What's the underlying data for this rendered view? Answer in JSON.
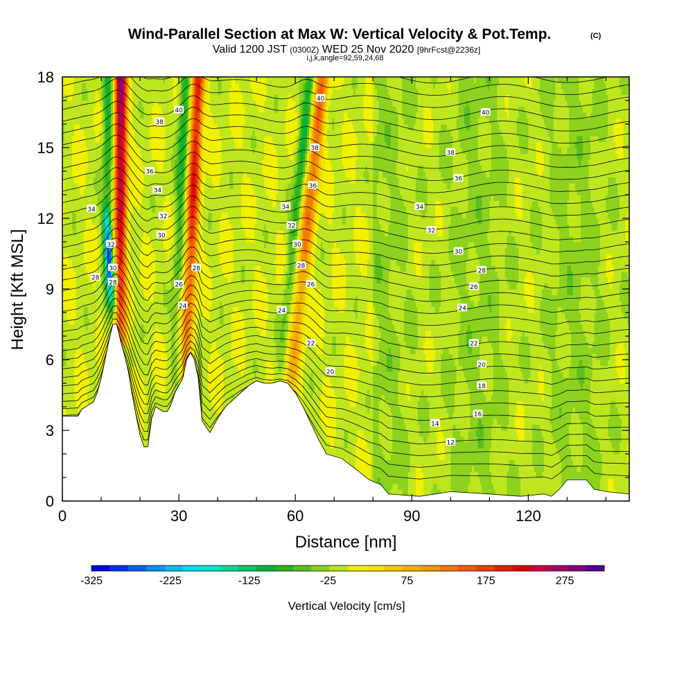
{
  "header": {
    "title": "Wind-Parallel Section at Max W: Vertical Velocity & Pot.Temp.",
    "copyright": "(C)",
    "valid_prefix": "Valid 1200 JST",
    "valid_zulu": "(0300Z)",
    "valid_date": "WED 25 Nov 2020",
    "forecast": "[9hrFcst@2236z]",
    "indices": "i,j,k,angle=92,59,24,68"
  },
  "chart_data": {
    "type": "heatmap",
    "xlabel": "Distance [nm]",
    "ylabel": "Height [Kft MSL]",
    "xlim": [
      0,
      146
    ],
    "ylim": [
      0,
      18
    ],
    "x_ticks": [
      "0",
      "30",
      "60",
      "90",
      "120"
    ],
    "x_tick_values": [
      0,
      30,
      60,
      90,
      120
    ],
    "y_ticks": [
      "0",
      "3",
      "6",
      "9",
      "12",
      "15",
      "18"
    ],
    "y_tick_values": [
      0,
      3,
      6,
      9,
      12,
      15,
      18
    ],
    "terrain_kft": [
      [
        0,
        3.6
      ],
      [
        4,
        3.6
      ],
      [
        5,
        3.9
      ],
      [
        8,
        4.2
      ],
      [
        9,
        4.6
      ],
      [
        10,
        5.2
      ],
      [
        11,
        6.0
      ],
      [
        12,
        6.8
      ],
      [
        13,
        7.5
      ],
      [
        14,
        7.5
      ],
      [
        15,
        6.8
      ],
      [
        16,
        6.2
      ],
      [
        17,
        5.5
      ],
      [
        18,
        4.5
      ],
      [
        19,
        3.6
      ],
      [
        20,
        2.8
      ],
      [
        21,
        2.3
      ],
      [
        22,
        2.3
      ],
      [
        23,
        3.5
      ],
      [
        24,
        4.0
      ],
      [
        26,
        3.8
      ],
      [
        27,
        3.8
      ],
      [
        28,
        4.1
      ],
      [
        29,
        4.6
      ],
      [
        31,
        5.2
      ],
      [
        32,
        6.0
      ],
      [
        33,
        6.3
      ],
      [
        34,
        6.0
      ],
      [
        35,
        5.2
      ],
      [
        36,
        3.4
      ],
      [
        38,
        2.9
      ],
      [
        40,
        3.5
      ],
      [
        42,
        4.0
      ],
      [
        44,
        4.3
      ],
      [
        46,
        4.6
      ],
      [
        48,
        4.9
      ],
      [
        50,
        5.1
      ],
      [
        52,
        5.0
      ],
      [
        54,
        5.0
      ],
      [
        56,
        5.1
      ],
      [
        58,
        5.0
      ],
      [
        60,
        4.6
      ],
      [
        62,
        4.0
      ],
      [
        64,
        3.3
      ],
      [
        66,
        2.6
      ],
      [
        68,
        2.0
      ],
      [
        72,
        1.8
      ],
      [
        76,
        1.3
      ],
      [
        79,
        0.9
      ],
      [
        82,
        0.7
      ],
      [
        84,
        0.3
      ],
      [
        92,
        0.2
      ],
      [
        96,
        0.3
      ],
      [
        100,
        0.4
      ],
      [
        110,
        0.3
      ],
      [
        118,
        0.2
      ],
      [
        124,
        0.3
      ],
      [
        126,
        0.2
      ],
      [
        128,
        0.5
      ],
      [
        130,
        0.9
      ],
      [
        135,
        0.9
      ],
      [
        137,
        0.5
      ],
      [
        140,
        0.4
      ],
      [
        146,
        0.3
      ]
    ],
    "updraft_cores": [
      {
        "x_base": 15,
        "x_top": 15,
        "width_nm": 1.6,
        "w_max": 300,
        "z_base": 7.5
      },
      {
        "x_base": 32,
        "x_top": 35,
        "width_nm": 1.6,
        "w_max": 225,
        "z_base": 6.0
      },
      {
        "x_base": 59,
        "x_top": 67,
        "width_nm": 1.8,
        "w_max": 150,
        "z_base": 5.0
      }
    ],
    "downdraft_cores": [
      {
        "x_base": 13,
        "x_top": 11,
        "width_nm": 1.0,
        "w_min": -250,
        "z_base": 7.5
      }
    ],
    "theta_contour_labels": [
      {
        "x": 7.5,
        "y": 12.4,
        "label": "34"
      },
      {
        "x": 8.5,
        "y": 9.5,
        "label": "28"
      },
      {
        "x": 12.5,
        "y": 10.9,
        "label": "32"
      },
      {
        "x": 13,
        "y": 9.9,
        "label": "30"
      },
      {
        "x": 13,
        "y": 9.3,
        "label": "28"
      },
      {
        "x": 25,
        "y": 16.1,
        "label": "38"
      },
      {
        "x": 22.5,
        "y": 14.0,
        "label": "36"
      },
      {
        "x": 24.5,
        "y": 13.2,
        "label": "34"
      },
      {
        "x": 26,
        "y": 12.1,
        "label": "32"
      },
      {
        "x": 25.5,
        "y": 11.3,
        "label": "30"
      },
      {
        "x": 30,
        "y": 16.6,
        "label": "40"
      },
      {
        "x": 30,
        "y": 9.2,
        "label": "26"
      },
      {
        "x": 31,
        "y": 8.3,
        "label": "24"
      },
      {
        "x": 34.5,
        "y": 9.9,
        "label": "28"
      },
      {
        "x": 57.5,
        "y": 12.5,
        "label": "34"
      },
      {
        "x": 59,
        "y": 11.7,
        "label": "32"
      },
      {
        "x": 60.5,
        "y": 10.9,
        "label": "30"
      },
      {
        "x": 61.5,
        "y": 10.0,
        "label": "28"
      },
      {
        "x": 64,
        "y": 9.2,
        "label": "26"
      },
      {
        "x": 56.5,
        "y": 8.1,
        "label": "24"
      },
      {
        "x": 64,
        "y": 6.7,
        "label": "22"
      },
      {
        "x": 69,
        "y": 5.5,
        "label": "20"
      },
      {
        "x": 66.5,
        "y": 17.1,
        "label": "40"
      },
      {
        "x": 65,
        "y": 15.0,
        "label": "38"
      },
      {
        "x": 64.5,
        "y": 13.4,
        "label": "36"
      },
      {
        "x": 109,
        "y": 16.5,
        "label": "40"
      },
      {
        "x": 100,
        "y": 14.8,
        "label": "38"
      },
      {
        "x": 102,
        "y": 13.7,
        "label": "36"
      },
      {
        "x": 92,
        "y": 12.5,
        "label": "34"
      },
      {
        "x": 95,
        "y": 11.5,
        "label": "32"
      },
      {
        "x": 102,
        "y": 10.6,
        "label": "30"
      },
      {
        "x": 108,
        "y": 9.8,
        "label": "28"
      },
      {
        "x": 106,
        "y": 9.1,
        "label": "26"
      },
      {
        "x": 103,
        "y": 8.2,
        "label": "24"
      },
      {
        "x": 106,
        "y": 6.7,
        "label": "22"
      },
      {
        "x": 108,
        "y": 5.8,
        "label": "20"
      },
      {
        "x": 108,
        "y": 4.9,
        "label": "18"
      },
      {
        "x": 107,
        "y": 3.7,
        "label": "16"
      },
      {
        "x": 96,
        "y": 3.3,
        "label": "14"
      },
      {
        "x": 100,
        "y": 2.5,
        "label": "12"
      }
    ],
    "colorbar": {
      "label": "Vertical Velocity [cm/s]",
      "tick_labels": [
        "-325",
        "-225",
        "-125",
        "-25",
        "75",
        "175",
        "275"
      ],
      "tick_values": [
        -325,
        -225,
        -125,
        -25,
        75,
        175,
        275
      ],
      "range": [
        -325,
        325
      ],
      "step": 25,
      "colors": [
        "#0000ee",
        "#0030f0",
        "#0060f0",
        "#0094f0",
        "#00bcf0",
        "#00dcf0",
        "#00e6c8",
        "#00dc96",
        "#00c864",
        "#00b43c",
        "#28b41e",
        "#5abe1e",
        "#8cd21e",
        "#bee61e",
        "#f0f000",
        "#f5e100",
        "#f5c800",
        "#f5af00",
        "#f59600",
        "#f57800",
        "#f55a00",
        "#f03c00",
        "#e61e00",
        "#dc0000",
        "#c8003c",
        "#aa0064",
        "#820082",
        "#500096"
      ]
    }
  }
}
